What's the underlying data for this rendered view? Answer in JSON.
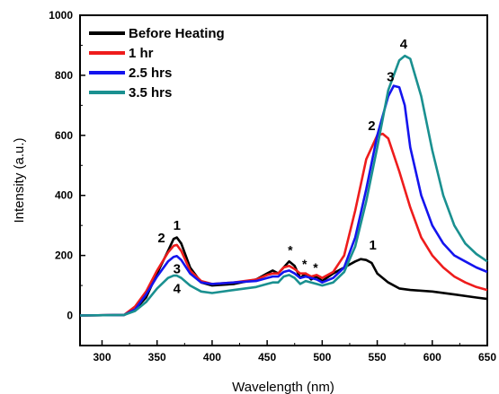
{
  "chart_data": {
    "type": "line",
    "xlabel": "Wavelength (nm)",
    "ylabel": "Intensity (a.u.)",
    "xlim": [
      280,
      650
    ],
    "ylim": [
      -100,
      1000
    ],
    "xticks": [
      300,
      350,
      400,
      450,
      500,
      550,
      600,
      650
    ],
    "yticks": [
      0,
      200,
      400,
      600,
      800,
      1000
    ],
    "legend_position": "top-left",
    "grid": false,
    "series": [
      {
        "name": "Before Heating",
        "color": "#000000",
        "points": [
          [
            280,
            0
          ],
          [
            320,
            2
          ],
          [
            330,
            20
          ],
          [
            340,
            60
          ],
          [
            350,
            140
          ],
          [
            360,
            215
          ],
          [
            365,
            255
          ],
          [
            368,
            260
          ],
          [
            372,
            240
          ],
          [
            380,
            160
          ],
          [
            390,
            110
          ],
          [
            400,
            100
          ],
          [
            420,
            105
          ],
          [
            440,
            120
          ],
          [
            450,
            140
          ],
          [
            455,
            150
          ],
          [
            460,
            140
          ],
          [
            465,
            160
          ],
          [
            470,
            180
          ],
          [
            475,
            165
          ],
          [
            480,
            125
          ],
          [
            485,
            140
          ],
          [
            490,
            120
          ],
          [
            495,
            130
          ],
          [
            500,
            115
          ],
          [
            510,
            140
          ],
          [
            520,
            160
          ],
          [
            530,
            180
          ],
          [
            535,
            188
          ],
          [
            540,
            185
          ],
          [
            545,
            175
          ],
          [
            550,
            140
          ],
          [
            560,
            110
          ],
          [
            570,
            90
          ],
          [
            580,
            85
          ],
          [
            600,
            80
          ],
          [
            620,
            70
          ],
          [
            640,
            60
          ],
          [
            650,
            55
          ]
        ]
      },
      {
        "name": "1 hr",
        "color": "#ee1c1c",
        "points": [
          [
            280,
            0
          ],
          [
            320,
            2
          ],
          [
            330,
            30
          ],
          [
            340,
            80
          ],
          [
            350,
            150
          ],
          [
            360,
            210
          ],
          [
            365,
            232
          ],
          [
            368,
            235
          ],
          [
            372,
            215
          ],
          [
            380,
            150
          ],
          [
            390,
            115
          ],
          [
            400,
            105
          ],
          [
            420,
            110
          ],
          [
            440,
            120
          ],
          [
            450,
            135
          ],
          [
            455,
            140
          ],
          [
            460,
            140
          ],
          [
            465,
            160
          ],
          [
            470,
            165
          ],
          [
            475,
            155
          ],
          [
            480,
            140
          ],
          [
            485,
            140
          ],
          [
            490,
            130
          ],
          [
            495,
            135
          ],
          [
            500,
            125
          ],
          [
            510,
            145
          ],
          [
            520,
            200
          ],
          [
            530,
            350
          ],
          [
            540,
            520
          ],
          [
            550,
            600
          ],
          [
            555,
            605
          ],
          [
            560,
            590
          ],
          [
            570,
            480
          ],
          [
            580,
            360
          ],
          [
            590,
            260
          ],
          [
            600,
            200
          ],
          [
            610,
            160
          ],
          [
            620,
            130
          ],
          [
            630,
            110
          ],
          [
            640,
            95
          ],
          [
            650,
            85
          ]
        ]
      },
      {
        "name": "2.5 hrs",
        "color": "#1414ee",
        "points": [
          [
            280,
            0
          ],
          [
            320,
            2
          ],
          [
            330,
            20
          ],
          [
            340,
            70
          ],
          [
            350,
            130
          ],
          [
            360,
            180
          ],
          [
            365,
            195
          ],
          [
            368,
            198
          ],
          [
            372,
            185
          ],
          [
            380,
            140
          ],
          [
            390,
            110
          ],
          [
            400,
            105
          ],
          [
            420,
            110
          ],
          [
            440,
            115
          ],
          [
            450,
            125
          ],
          [
            455,
            130
          ],
          [
            460,
            130
          ],
          [
            465,
            145
          ],
          [
            470,
            150
          ],
          [
            475,
            140
          ],
          [
            480,
            125
          ],
          [
            485,
            130
          ],
          [
            490,
            125
          ],
          [
            495,
            120
          ],
          [
            500,
            110
          ],
          [
            510,
            125
          ],
          [
            520,
            160
          ],
          [
            530,
            260
          ],
          [
            540,
            420
          ],
          [
            550,
            600
          ],
          [
            560,
            730
          ],
          [
            565,
            765
          ],
          [
            570,
            760
          ],
          [
            575,
            700
          ],
          [
            580,
            560
          ],
          [
            590,
            400
          ],
          [
            600,
            300
          ],
          [
            610,
            240
          ],
          [
            620,
            200
          ],
          [
            630,
            180
          ],
          [
            640,
            160
          ],
          [
            650,
            145
          ]
        ]
      },
      {
        "name": "3.5 hrs",
        "color": "#1a9090",
        "points": [
          [
            280,
            0
          ],
          [
            320,
            2
          ],
          [
            330,
            15
          ],
          [
            340,
            45
          ],
          [
            350,
            90
          ],
          [
            360,
            125
          ],
          [
            365,
            133
          ],
          [
            368,
            133
          ],
          [
            372,
            125
          ],
          [
            380,
            100
          ],
          [
            390,
            80
          ],
          [
            400,
            75
          ],
          [
            420,
            85
          ],
          [
            440,
            95
          ],
          [
            450,
            105
          ],
          [
            455,
            110
          ],
          [
            460,
            110
          ],
          [
            465,
            130
          ],
          [
            470,
            135
          ],
          [
            475,
            125
          ],
          [
            480,
            105
          ],
          [
            485,
            115
          ],
          [
            490,
            110
          ],
          [
            495,
            105
          ],
          [
            500,
            100
          ],
          [
            510,
            110
          ],
          [
            520,
            145
          ],
          [
            530,
            230
          ],
          [
            540,
            380
          ],
          [
            550,
            560
          ],
          [
            560,
            750
          ],
          [
            570,
            850
          ],
          [
            575,
            865
          ],
          [
            580,
            855
          ],
          [
            590,
            730
          ],
          [
            600,
            550
          ],
          [
            610,
            400
          ],
          [
            620,
            300
          ],
          [
            630,
            240
          ],
          [
            640,
            205
          ],
          [
            650,
            180
          ]
        ]
      }
    ],
    "annotations": [
      {
        "text": "1",
        "x": 368,
        "y": 300
      },
      {
        "text": "2",
        "x": 354,
        "y": 258
      },
      {
        "text": "3",
        "x": 368,
        "y": 155
      },
      {
        "text": "4",
        "x": 368,
        "y": 90
      },
      {
        "text": "*",
        "x": 471,
        "y": 218
      },
      {
        "text": "*",
        "x": 484,
        "y": 172
      },
      {
        "text": "*",
        "x": 494,
        "y": 160
      },
      {
        "text": "1",
        "x": 546,
        "y": 235
      },
      {
        "text": "2",
        "x": 545,
        "y": 632
      },
      {
        "text": "3",
        "x": 562,
        "y": 795
      },
      {
        "text": "4",
        "x": 574,
        "y": 905
      }
    ]
  }
}
